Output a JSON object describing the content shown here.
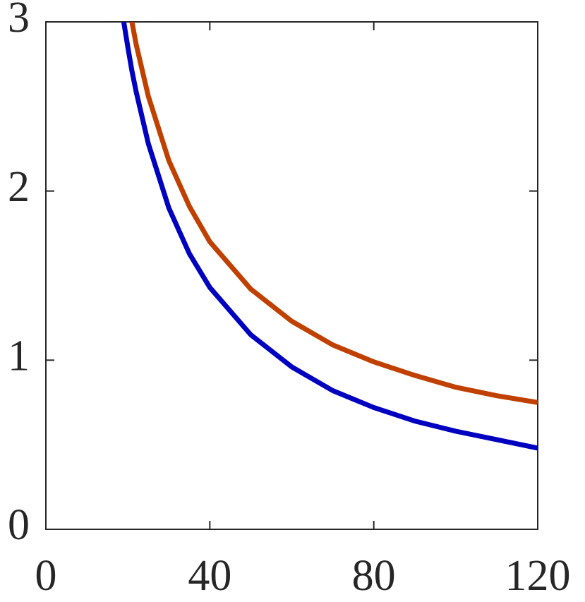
{
  "chart_data": {
    "type": "line",
    "x": [
      19,
      20,
      21,
      22,
      25,
      30,
      35,
      40,
      50,
      60,
      70,
      80,
      90,
      100,
      110,
      120
    ],
    "series": [
      {
        "color": "#0000c0",
        "values": [
          3.0,
          2.85,
          2.71,
          2.59,
          2.28,
          1.9,
          1.63,
          1.43,
          1.15,
          0.96,
          0.82,
          0.72,
          0.64,
          0.58,
          0.53,
          0.48
        ]
      },
      {
        "color": "#c04000",
        "values": [
          null,
          null,
          3.0,
          2.87,
          2.56,
          2.18,
          1.91,
          1.7,
          1.42,
          1.23,
          1.09,
          0.99,
          0.91,
          0.84,
          0.79,
          0.75
        ]
      }
    ],
    "xlim": [
      0,
      120
    ],
    "xticks": [
      0,
      40,
      80,
      120
    ],
    "ylim": [
      0,
      3
    ],
    "yticks": [
      0,
      1,
      2,
      3
    ],
    "grid": false
  }
}
